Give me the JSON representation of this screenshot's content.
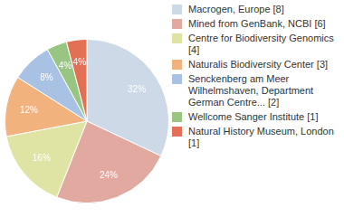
{
  "chart_data": {
    "type": "pie",
    "categories": [
      "Macrogen, Europe [8]",
      "Mined from GenBank, NCBI [6]",
      "Centre for Biodiversity Genomics [4]",
      "Naturalis Biodiversity Center [3]",
      "Senckenberg am Meer Wilhelmshaven, Department German Centre... [2]",
      "Wellcome Sanger Institute [1]",
      "Natural History Museum, London [1]"
    ],
    "values": [
      32,
      24,
      16,
      12,
      8,
      4,
      4
    ],
    "value_labels": [
      "32%",
      "24%",
      "16%",
      "12%",
      "8%",
      "4%",
      "4%"
    ],
    "colors": [
      "#cdd9e6",
      "#e2a9a1",
      "#dfe4a4",
      "#f1b27d",
      "#a9c2e4",
      "#98c582",
      "#e36f54"
    ],
    "data_labels": true,
    "legend": "right"
  }
}
